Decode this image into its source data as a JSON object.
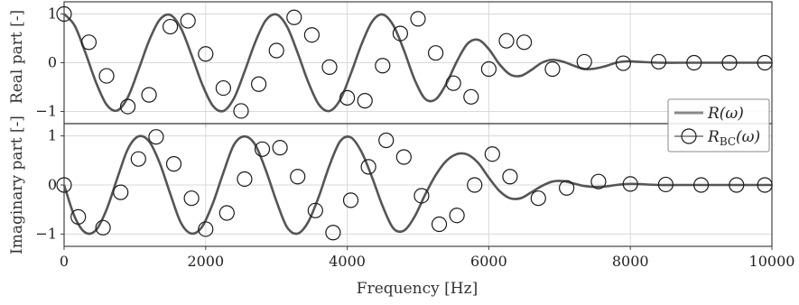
{
  "chart_data": [
    {
      "type": "line",
      "panel": "top",
      "ylabel": "Real part [-]",
      "xlim": [
        0,
        10000
      ],
      "ylim": [
        -1.25,
        1.25
      ],
      "yticks": [
        "1",
        "0",
        "−1"
      ],
      "yticks_values": [
        1,
        0,
        -1
      ],
      "grid": true,
      "series": [
        {
          "name": "R(ω)",
          "style": "solid line",
          "x": [
            0,
            150,
            300,
            450,
            600,
            750,
            900,
            1050,
            1200,
            1350,
            1500,
            1650,
            1800,
            1950,
            2100,
            2250,
            2400,
            2550,
            2700,
            2850,
            3000,
            3150,
            3300,
            3450,
            3600,
            3750,
            3900,
            4050,
            4200,
            4350,
            4500,
            4650,
            4800,
            4950,
            5100,
            5250,
            5400,
            5550,
            5700,
            5850,
            6000,
            6150,
            6300,
            6450,
            6600,
            6750,
            6900,
            7050,
            7200,
            7350,
            7500,
            7650,
            7800,
            7950,
            8100,
            8400,
            8700,
            9000,
            9300,
            9600,
            9900,
            10000
          ],
          "y": [
            1.0,
            0.76,
            0.21,
            -0.4,
            -0.86,
            -0.98,
            -0.71,
            -0.15,
            0.45,
            0.88,
            0.98,
            0.71,
            0.16,
            -0.44,
            -0.88,
            -0.99,
            -0.73,
            -0.18,
            0.42,
            0.87,
            0.99,
            0.74,
            0.2,
            -0.4,
            -0.86,
            -0.99,
            -0.76,
            -0.23,
            0.37,
            0.84,
            0.99,
            0.77,
            0.26,
            -0.34,
            -0.74,
            -0.75,
            -0.43,
            0.03,
            0.39,
            0.47,
            0.28,
            -0.03,
            -0.24,
            -0.27,
            -0.15,
            0.0,
            0.06,
            0.02,
            -0.06,
            -0.13,
            -0.12,
            -0.07,
            0.0,
            0.03,
            0.02,
            0.0,
            0.0,
            0.0,
            0.0,
            0.0,
            0.0,
            0.0
          ]
        },
        {
          "name": "R_BC(ω)",
          "style": "circle markers",
          "x": [
            0,
            350,
            600,
            900,
            1200,
            1500,
            1750,
            2000,
            2250,
            2500,
            2750,
            3000,
            3250,
            3500,
            3750,
            4000,
            4250,
            4500,
            4750,
            5000,
            5250,
            5500,
            5750,
            6000,
            6250,
            6500,
            6900,
            7350,
            7900,
            8400,
            8900,
            9400,
            9900
          ],
          "y": [
            1.0,
            0.42,
            -0.27,
            -0.9,
            -0.66,
            0.74,
            0.86,
            0.18,
            -0.52,
            -0.99,
            -0.44,
            0.25,
            0.93,
            0.57,
            -0.09,
            -0.72,
            -0.78,
            -0.06,
            0.6,
            0.9,
            0.2,
            -0.42,
            -0.7,
            -0.13,
            0.45,
            0.42,
            -0.13,
            0.02,
            -0.01,
            0.02,
            0.0,
            0.0,
            0.0
          ]
        }
      ]
    },
    {
      "type": "line",
      "panel": "bottom",
      "ylabel": "Imaginary part [-]",
      "xlabel": "Frequency [Hz]",
      "xlim": [
        0,
        10000
      ],
      "ylim": [
        -1.25,
        1.25
      ],
      "xticks": [
        "0",
        "2000",
        "4000",
        "6000",
        "8000",
        "10000"
      ],
      "xticks_values": [
        0,
        2000,
        4000,
        6000,
        8000,
        10000
      ],
      "yticks": [
        "1",
        "0",
        "−1"
      ],
      "yticks_values": [
        1,
        0,
        -1
      ],
      "grid": true,
      "series": [
        {
          "name": "R(ω)",
          "style": "solid line",
          "x": [
            0,
            150,
            300,
            450,
            600,
            750,
            900,
            1050,
            1200,
            1350,
            1500,
            1650,
            1800,
            1950,
            2100,
            2250,
            2400,
            2550,
            2700,
            2850,
            3000,
            3150,
            3300,
            3450,
            3600,
            3750,
            3900,
            4050,
            4200,
            4350,
            4500,
            4650,
            4800,
            4950,
            5100,
            5250,
            5400,
            5550,
            5700,
            5850,
            6000,
            6150,
            6300,
            6450,
            6600,
            6750,
            6900,
            7050,
            7200,
            7350,
            7500,
            7650,
            7800,
            7950,
            8100,
            8400,
            8700,
            9000,
            9300,
            9600,
            9900,
            10000
          ],
          "y": [
            0.0,
            -0.65,
            -0.97,
            -0.92,
            -0.5,
            0.13,
            0.73,
            0.99,
            0.89,
            0.45,
            -0.18,
            -0.77,
            -0.99,
            -0.85,
            -0.38,
            0.25,
            0.82,
            0.99,
            0.82,
            0.3,
            -0.33,
            -0.86,
            -0.99,
            -0.75,
            -0.23,
            0.4,
            0.89,
            0.97,
            0.68,
            0.16,
            -0.43,
            -0.88,
            -0.93,
            -0.65,
            -0.2,
            0.2,
            0.49,
            0.63,
            0.62,
            0.45,
            0.15,
            -0.12,
            -0.27,
            -0.27,
            -0.15,
            -0.02,
            0.07,
            0.08,
            0.03,
            -0.02,
            -0.04,
            -0.03,
            0.0,
            0.02,
            0.02,
            0.0,
            0.0,
            0.0,
            0.0,
            0.0,
            0.0,
            0.0
          ]
        },
        {
          "name": "R_BC(ω)",
          "style": "circle markers",
          "x": [
            0,
            200,
            550,
            800,
            1050,
            1300,
            1550,
            1800,
            2000,
            2300,
            2550,
            2800,
            3050,
            3300,
            3550,
            3800,
            4050,
            4300,
            4550,
            4800,
            5050,
            5300,
            5550,
            5800,
            6050,
            6300,
            6700,
            7100,
            7550,
            8000,
            8500,
            9000,
            9500,
            9900
          ],
          "y": [
            0.0,
            -0.65,
            -0.87,
            -0.15,
            0.53,
            0.98,
            0.43,
            -0.27,
            -0.9,
            -0.57,
            0.12,
            0.73,
            0.76,
            0.17,
            -0.52,
            -0.97,
            -0.31,
            0.37,
            0.91,
            0.57,
            -0.22,
            -0.8,
            -0.62,
            0.0,
            0.63,
            0.17,
            -0.27,
            -0.06,
            0.07,
            0.02,
            0.01,
            0.0,
            0.0,
            0.0
          ]
        }
      ]
    }
  ],
  "legend": {
    "placement": "right, between panels",
    "entries": [
      {
        "label": "R(ω)"
      },
      {
        "label_main": "R",
        "label_sub": "BC",
        "label_tail": "(ω)"
      }
    ]
  },
  "colors": {
    "line": "#555555",
    "marker_edge": "#1a1a1a",
    "grid": "#d9d9d9",
    "axes": "#444444"
  }
}
